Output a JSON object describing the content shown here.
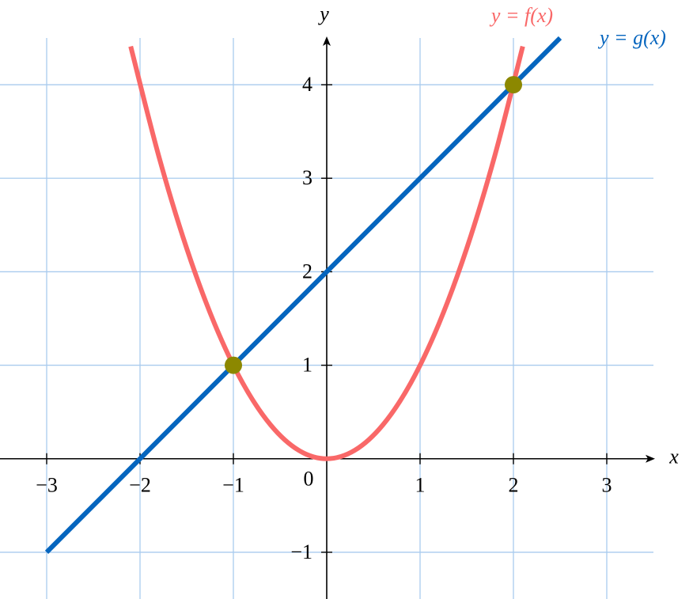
{
  "chart_data": {
    "type": "line",
    "xlabel": "x",
    "ylabel": "y",
    "origin_label": "0",
    "xlim": [
      -3.5,
      3.5
    ],
    "ylim": [
      -1.5,
      4.5
    ],
    "xticks": [
      {
        "value": -3,
        "label": "−3"
      },
      {
        "value": -2,
        "label": "−2"
      },
      {
        "value": -1,
        "label": "−1"
      },
      1,
      2,
      3
    ],
    "yticks": [
      {
        "value": -1,
        "label": "−1"
      },
      1,
      2,
      3,
      4
    ],
    "grid": true,
    "grid_color": "#a9cbee",
    "series": [
      {
        "name": "y = f(x)",
        "color": "#f96868",
        "x": [
          -2.1,
          -1.8,
          -1.5,
          -1.2,
          -0.9,
          -0.6,
          -0.3,
          0,
          0.3,
          0.6,
          0.9,
          1.2,
          1.5,
          1.8,
          2.1
        ],
        "values": [
          4.41,
          3.24,
          2.25,
          1.44,
          0.81,
          0.36,
          0.09,
          0,
          0.09,
          0.36,
          0.81,
          1.44,
          2.25,
          3.24,
          4.41
        ]
      },
      {
        "name": "y = g(x)",
        "color": "#0565be",
        "x": [
          -3,
          2.5
        ],
        "values": [
          -1,
          4.5
        ]
      },
      {
        "color": "#8c8800",
        "markers_only": true,
        "x": [
          -1,
          2
        ],
        "values": [
          1,
          4
        ]
      }
    ]
  }
}
